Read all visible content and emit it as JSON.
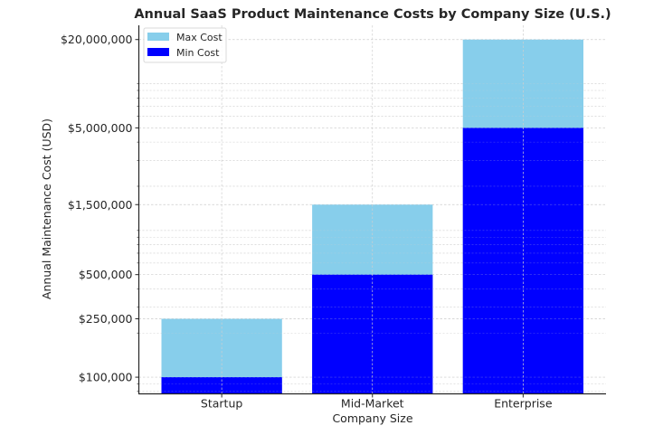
{
  "chart_data": {
    "type": "bar",
    "stacked": "overlay",
    "title": "Annual SaaS Product Maintenance Costs by Company Size (U.S.)",
    "xlabel": "Company Size",
    "ylabel": "Annual Maintenance Cost (USD)",
    "yscale": "log",
    "ylim": [
      77000,
      25000000
    ],
    "categories": [
      "Startup",
      "Mid-Market",
      "Enterprise"
    ],
    "series": [
      {
        "name": "Max Cost",
        "color": "#87ceeb",
        "values": [
          250000,
          1500000,
          20000000
        ]
      },
      {
        "name": "Min Cost",
        "color": "#0000ff",
        "values": [
          100000,
          500000,
          5000000
        ]
      }
    ],
    "yticks": [
      {
        "value": 100000,
        "label": "$100,000"
      },
      {
        "value": 250000,
        "label": "$250,000"
      },
      {
        "value": 500000,
        "label": "$500,000"
      },
      {
        "value": 1500000,
        "label": "$1,500,000"
      },
      {
        "value": 5000000,
        "label": "$5,000,000"
      },
      {
        "value": 20000000,
        "label": "$20,000,000"
      }
    ],
    "minor_gridlines": [
      80000,
      90000,
      200000,
      300000,
      400000,
      600000,
      700000,
      800000,
      900000,
      1000000,
      2000000,
      3000000,
      4000000,
      6000000,
      7000000,
      8000000,
      9000000,
      10000000
    ],
    "grid": true,
    "legend_position": "top-left"
  }
}
